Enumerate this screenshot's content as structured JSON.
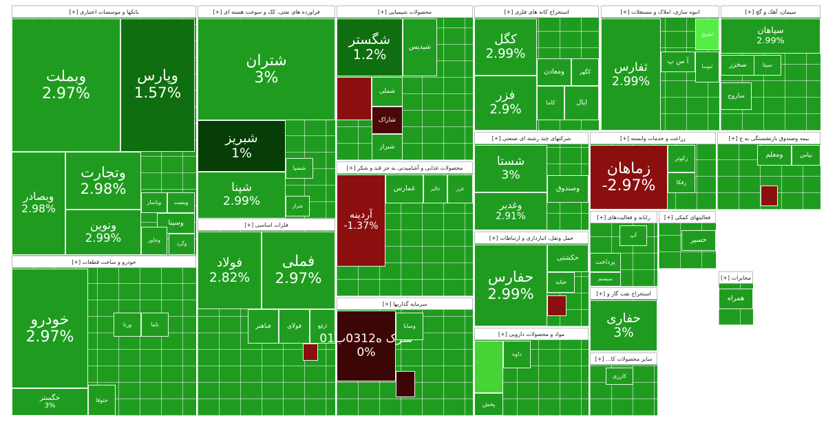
{
  "sectors": [
    {
      "title": "بانکها و موسسات اعتباری [+]",
      "tiles": [
        {
          "name": "وبملت",
          "change": "2.97%"
        },
        {
          "name": "وپارس",
          "change": "1.57%"
        },
        {
          "name": "وبصادر",
          "change": "2.98%"
        },
        {
          "name": "وتجارت",
          "change": "2.98%"
        },
        {
          "name": "ونوین",
          "change": "2.99%"
        },
        {
          "name": "وپاسار"
        },
        {
          "name": "وبست"
        },
        {
          "name": "وسینا"
        },
        {
          "name": "وخاور"
        },
        {
          "name": "وگرد"
        }
      ]
    },
    {
      "title": "خودرو و ساخت قطعات [+]",
      "tiles": [
        {
          "name": "خودرو",
          "change": "2.97%"
        },
        {
          "name": "خگستر",
          "change": "3%"
        },
        {
          "name": "ناما"
        },
        {
          "name": "ورنا"
        },
        {
          "name": "ختوقا"
        }
      ]
    },
    {
      "title": "فراورده های نفتی، کک و سوخت هسته ای [+]",
      "tiles": [
        {
          "name": "شتران",
          "change": "3%"
        },
        {
          "name": "شبریز",
          "change": "1%"
        },
        {
          "name": "شپنا",
          "change": "2.99%"
        },
        {
          "name": "شسپا"
        },
        {
          "name": "شراز"
        }
      ]
    },
    {
      "title": "فلزات اساسی [+]",
      "tiles": [
        {
          "name": "فولاد",
          "change": "2.82%"
        },
        {
          "name": "فملی",
          "change": "2.97%"
        },
        {
          "name": "فباهنر"
        },
        {
          "name": "فولای"
        },
        {
          "name": "ارفع"
        },
        {
          "name": ""
        }
      ]
    },
    {
      "title": "محصولات شیمیایی [+]",
      "tiles": [
        {
          "name": "شگستر",
          "change": "1.2%"
        },
        {
          "name": ""
        },
        {
          "name": "شاراک"
        },
        {
          "name": "شپدیس"
        },
        {
          "name": "شملی"
        },
        {
          "name": "شیراز"
        }
      ]
    },
    {
      "title": "محصولات غذایی و آشامیدنی به جز قند و شکر [+]",
      "tiles": [
        {
          "name": "آردینه",
          "change": "-1.37%"
        },
        {
          "name": "غمارس"
        },
        {
          "name": "غالبر"
        },
        {
          "name": "غزر"
        }
      ]
    },
    {
      "title": "سرمایه گذاریها [+]",
      "tiles": [
        {
          "name": "سرک ه0312ب01",
          "change": "0%"
        },
        {
          "name": "وسایا"
        },
        {
          "name": ""
        }
      ]
    },
    {
      "title": "استخراج کانه های فلزی [+]",
      "tiles": [
        {
          "name": "کگل",
          "change": "2.99%"
        },
        {
          "name": "فزر",
          "change": "2.9%"
        },
        {
          "name": "ومعادن"
        },
        {
          "name": "کگهر"
        },
        {
          "name": "کاما"
        },
        {
          "name": "ایال"
        }
      ]
    },
    {
      "title": "شرکتهای چند رشته ای صنعتی [+]",
      "tiles": [
        {
          "name": "شستا",
          "change": "3%"
        },
        {
          "name": "وغدیر",
          "change": "2.91%"
        },
        {
          "name": "وصندوق"
        }
      ]
    },
    {
      "title": "حمل ونقل، انبارداری و ارتباطات [+]",
      "tiles": [
        {
          "name": "حفارس",
          "change": "2.99%"
        },
        {
          "name": "حکشتی"
        },
        {
          "name": "حتاید"
        },
        {
          "name": ""
        }
      ]
    },
    {
      "title": "مواد و محصولات دارویی [+]",
      "tiles": [
        {
          "name": ""
        },
        {
          "name": "داوه"
        },
        {
          "name": "پخش"
        }
      ]
    },
    {
      "title": "انبوه سازی، املاک و مستغلات [+]",
      "tiles": [
        {
          "name": "ثفارس",
          "change": "2.99%"
        },
        {
          "name": "ثشرق"
        },
        {
          "name": "ثنوسا"
        },
        {
          "name": "آ س پ"
        }
      ]
    },
    {
      "title": "سیمان، آهک و گچ [+]",
      "tiles": [
        {
          "name": "سپاهان",
          "change": "2.99%"
        },
        {
          "name": "سخزر"
        },
        {
          "name": "سیتا"
        },
        {
          "name": "ساروج"
        }
      ]
    },
    {
      "title": "زراعت و خدمات وابسته [+]",
      "tiles": [
        {
          "name": "زماهان",
          "change": "-2.97%"
        },
        {
          "name": "زکوثر"
        },
        {
          "name": "زفکا"
        }
      ]
    },
    {
      "title": "بیمه وصندوق بازنشستگی به ج [+]",
      "tiles": [
        {
          "name": "ومعلم"
        },
        {
          "name": "بپاس"
        },
        {
          "name": ""
        }
      ]
    },
    {
      "title": "رایانه و فعالیت‌های [+]",
      "tiles": [
        {
          "name": "آپ"
        },
        {
          "name": "پرداخت"
        },
        {
          "name": "سیستم"
        }
      ]
    },
    {
      "title": "فعالیتهای کمکی [+]",
      "tiles": [
        {
          "name": "حسیر"
        }
      ]
    },
    {
      "title": "استخراج نفت گاز و [+]",
      "tiles": [
        {
          "name": "حفاری",
          "change": "3%"
        }
      ]
    },
    {
      "title": "مخابرات [+]",
      "tiles": [
        {
          "name": "همراه"
        }
      ]
    },
    {
      "title": "سایر محصولات کا... [+]",
      "tiles": [
        {
          "name": "کارزی"
        }
      ]
    }
  ]
}
